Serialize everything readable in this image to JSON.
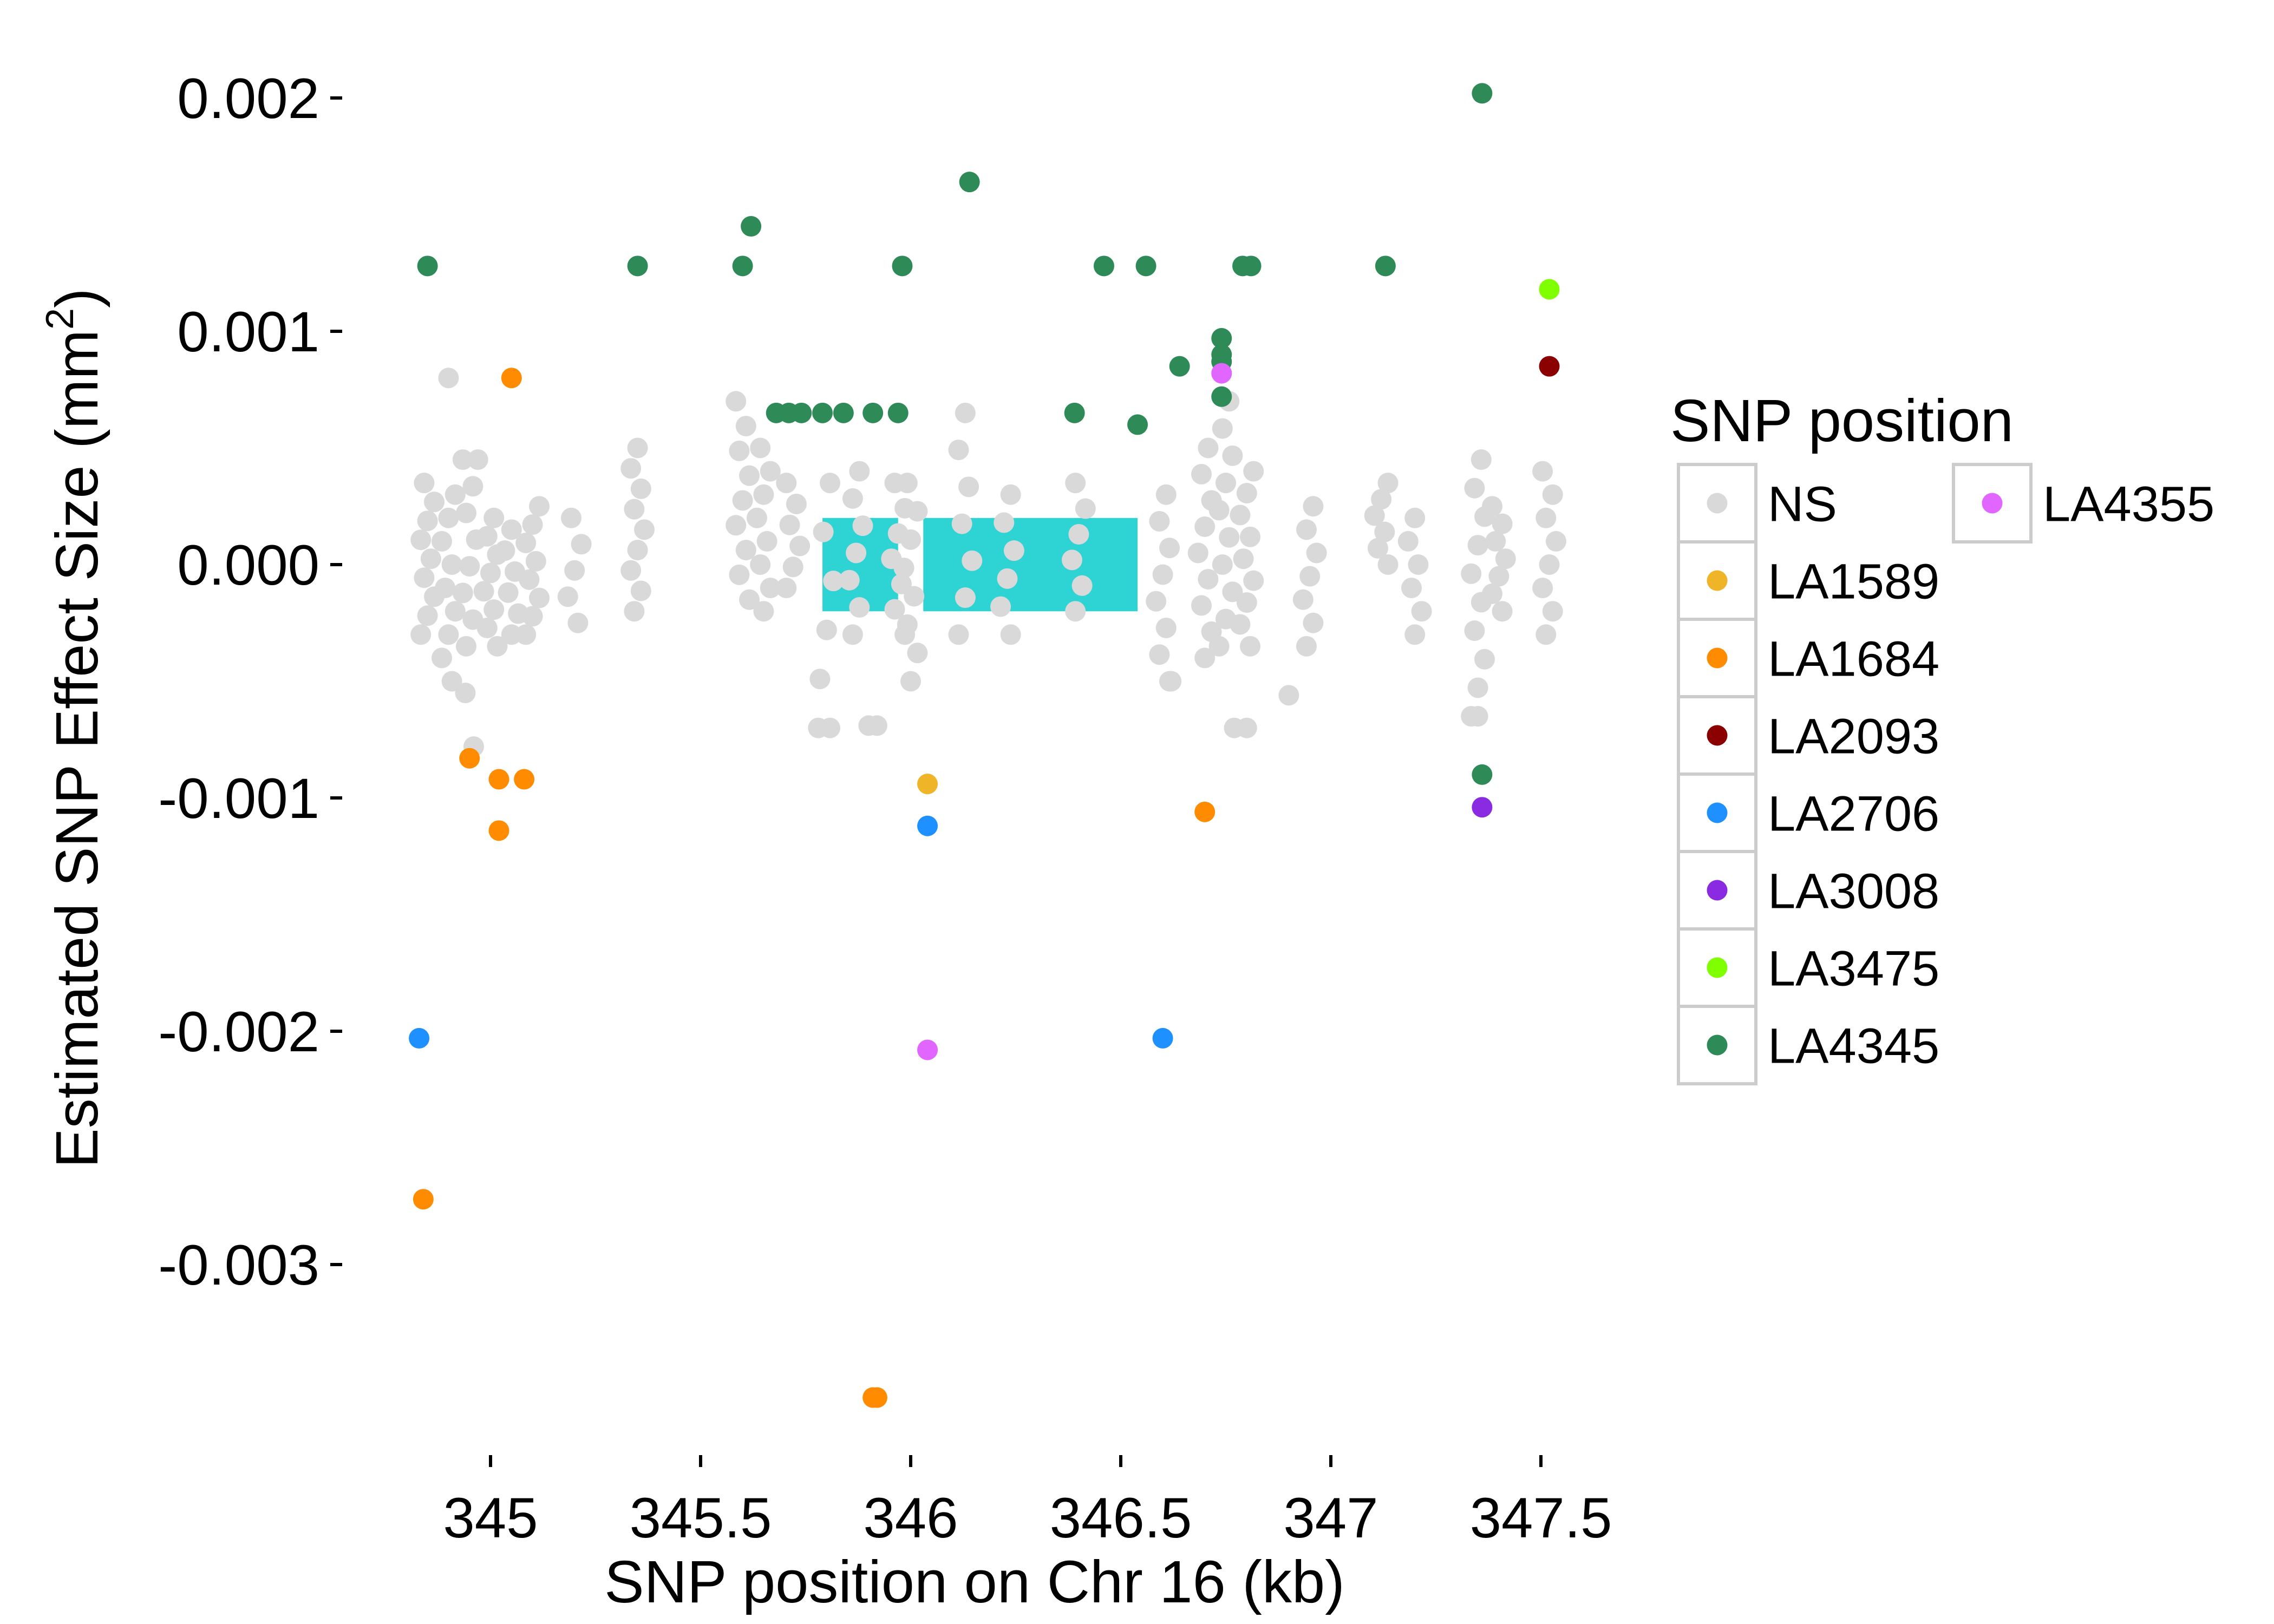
{
  "chart_data": {
    "type": "scatter",
    "xlabel": "SNP position on Chr 16 (kb)",
    "ylabel": "Estimated SNP Effect Size (mm",
    "ylabel_sup": "2",
    "ylabel_close": ")",
    "xlim": [
      344.7,
      347.85
    ],
    "ylim": [
      -3.8,
      2.3
    ],
    "y_scale_note": "values x 0.001",
    "x_ticks": [
      {
        "value": 345,
        "label": "345"
      },
      {
        "value": 345.5,
        "label": "345.5"
      },
      {
        "value": 346,
        "label": "346"
      },
      {
        "value": 346.5,
        "label": "346.5"
      },
      {
        "value": 347,
        "label": "347"
      },
      {
        "value": 347.5,
        "label": "347.5"
      }
    ],
    "y_ticks": [
      {
        "value": 2,
        "label": "0.002"
      },
      {
        "value": 1,
        "label": "0.001"
      },
      {
        "value": 0,
        "label": "0.000"
      },
      {
        "value": -1,
        "label": "-0.001"
      },
      {
        "value": -2,
        "label": "-0.002"
      },
      {
        "value": -3,
        "label": "-0.003"
      }
    ],
    "grid": false,
    "legend": {
      "title": "SNP position",
      "placement": "right",
      "entries": [
        {
          "name": "NS",
          "color": "#d9d9d9"
        },
        {
          "name": "LA1589",
          "color": "#f0b429"
        },
        {
          "name": "LA1684",
          "color": "#ff8c00"
        },
        {
          "name": "LA2093",
          "color": "#8b0000"
        },
        {
          "name": "LA2706",
          "color": "#1e90ff"
        },
        {
          "name": "LA3008",
          "color": "#8a2be2"
        },
        {
          "name": "LA3475",
          "color": "#7fff00"
        },
        {
          "name": "LA4345",
          "color": "#2e8b57"
        },
        {
          "name": "LA4355",
          "color": "#e066ff"
        }
      ]
    },
    "gene_blocks": [
      {
        "x0": 345.79,
        "x1": 345.97,
        "y0": -0.2,
        "y1": 0.2,
        "color": "#2ed3d3"
      },
      {
        "x0": 346.03,
        "x1": 346.54,
        "y0": -0.2,
        "y1": 0.2,
        "color": "#2ed3d3"
      }
    ],
    "series": [
      {
        "name": "NS",
        "color": "#d9d9d9",
        "clusters": [
          {
            "x": 344.85,
            "ymin": -0.3,
            "ymax": 0.35,
            "n": 9
          },
          {
            "x": 344.9,
            "ymin": -0.5,
            "ymax": 0.3,
            "n": 9
          },
          {
            "x": 344.95,
            "ymin": -0.35,
            "ymax": 0.45,
            "n": 8
          },
          {
            "x": 345.0,
            "ymin": -0.35,
            "ymax": 0.2,
            "n": 8
          },
          {
            "x": 345.05,
            "ymin": -0.3,
            "ymax": 0.15,
            "n": 6
          },
          {
            "x": 345.1,
            "ymin": -0.3,
            "ymax": 0.25,
            "n": 8
          },
          {
            "x": 345.2,
            "ymin": -0.25,
            "ymax": 0.2,
            "n": 5
          },
          {
            "x": 345.35,
            "ymin": -0.2,
            "ymax": 0.5,
            "n": 9
          },
          {
            "x": 345.6,
            "ymin": -0.15,
            "ymax": 0.7,
            "n": 9
          },
          {
            "x": 345.65,
            "ymin": -0.2,
            "ymax": 0.5,
            "n": 8
          },
          {
            "x": 345.72,
            "ymin": -0.1,
            "ymax": 0.35,
            "n": 6
          },
          {
            "x": 345.8,
            "ymin": -0.7,
            "ymax": 0.35,
            "n": 6
          },
          {
            "x": 345.87,
            "ymin": -0.3,
            "ymax": 0.4,
            "n": 7
          },
          {
            "x": 345.97,
            "ymin": -0.3,
            "ymax": 0.35,
            "n": 7
          },
          {
            "x": 346.0,
            "ymin": -0.5,
            "ymax": 0.35,
            "n": 8
          },
          {
            "x": 346.13,
            "ymin": -0.3,
            "ymax": 0.65,
            "n": 7
          },
          {
            "x": 346.23,
            "ymin": -0.3,
            "ymax": 0.3,
            "n": 6
          },
          {
            "x": 346.4,
            "ymin": -0.2,
            "ymax": 0.35,
            "n": 6
          },
          {
            "x": 346.6,
            "ymin": -0.5,
            "ymax": 0.3,
            "n": 8
          },
          {
            "x": 346.7,
            "ymin": -0.4,
            "ymax": 0.5,
            "n": 9
          },
          {
            "x": 346.75,
            "ymin": -0.35,
            "ymax": 0.7,
            "n": 10
          },
          {
            "x": 346.8,
            "ymin": -0.35,
            "ymax": 0.4,
            "n": 9
          },
          {
            "x": 346.95,
            "ymin": -0.35,
            "ymax": 0.25,
            "n": 7
          },
          {
            "x": 347.12,
            "ymin": 0.0,
            "ymax": 0.35,
            "n": 6
          },
          {
            "x": 347.2,
            "ymin": -0.3,
            "ymax": 0.2,
            "n": 6
          },
          {
            "x": 347.35,
            "ymin": -0.65,
            "ymax": 0.45,
            "n": 10
          },
          {
            "x": 347.4,
            "ymin": -0.2,
            "ymax": 0.25,
            "n": 7
          },
          {
            "x": 347.52,
            "ymin": -0.3,
            "ymax": 0.4,
            "n": 8
          }
        ],
        "points": [
          [
            344.9,
            0.8
          ],
          [
            344.97,
            0.45
          ],
          [
            344.96,
            -0.78
          ],
          [
            344.94,
            -0.55
          ],
          [
            345.78,
            -0.7
          ],
          [
            345.92,
            -0.69
          ],
          [
            345.9,
            -0.69
          ],
          [
            346.77,
            -0.7
          ],
          [
            346.8,
            -0.7
          ],
          [
            346.9,
            -0.56
          ],
          [
            346.62,
            -0.5
          ],
          [
            347.35,
            -0.65
          ]
        ]
      },
      {
        "name": "LA1589",
        "color": "#f0b429",
        "points": [
          [
            346.04,
            -0.94
          ]
        ]
      },
      {
        "name": "LA1684",
        "color": "#ff8c00",
        "points": [
          [
            345.05,
            0.8
          ],
          [
            344.95,
            -0.83
          ],
          [
            345.02,
            -0.92
          ],
          [
            345.08,
            -0.92
          ],
          [
            345.02,
            -1.14
          ],
          [
            344.84,
            -2.72
          ],
          [
            345.91,
            -3.57
          ],
          [
            345.92,
            -3.57
          ],
          [
            346.7,
            -1.06
          ]
        ]
      },
      {
        "name": "LA2093",
        "color": "#8b0000",
        "points": [
          [
            347.52,
            0.85
          ]
        ]
      },
      {
        "name": "LA2706",
        "color": "#1e90ff",
        "points": [
          [
            344.83,
            -2.03
          ],
          [
            346.04,
            -1.12
          ],
          [
            346.6,
            -2.03
          ]
        ]
      },
      {
        "name": "LA3008",
        "color": "#8a2be2",
        "points": [
          [
            347.36,
            -1.04
          ]
        ]
      },
      {
        "name": "LA3475",
        "color": "#7fff00",
        "points": [
          [
            347.52,
            1.18
          ]
        ]
      },
      {
        "name": "LA4345",
        "color": "#2e8b57",
        "points": [
          [
            344.85,
            1.28
          ],
          [
            345.35,
            1.28
          ],
          [
            345.6,
            1.28
          ],
          [
            345.62,
            1.45
          ],
          [
            345.98,
            1.28
          ],
          [
            346.14,
            1.64
          ],
          [
            346.46,
            1.28
          ],
          [
            346.56,
            1.28
          ],
          [
            346.79,
            1.28
          ],
          [
            346.81,
            1.28
          ],
          [
            347.13,
            1.28
          ],
          [
            347.36,
            2.02
          ],
          [
            345.68,
            0.65
          ],
          [
            345.71,
            0.65
          ],
          [
            345.74,
            0.65
          ],
          [
            345.79,
            0.65
          ],
          [
            345.84,
            0.65
          ],
          [
            345.91,
            0.65
          ],
          [
            345.97,
            0.65
          ],
          [
            346.39,
            0.65
          ],
          [
            346.54,
            0.6
          ],
          [
            346.64,
            0.85
          ],
          [
            346.74,
            0.97
          ],
          [
            346.74,
            0.9
          ],
          [
            346.74,
            0.87
          ],
          [
            346.74,
            0.72
          ],
          [
            347.36,
            -0.9
          ]
        ]
      },
      {
        "name": "LA4355",
        "color": "#e066ff",
        "points": [
          [
            346.74,
            0.82
          ],
          [
            346.04,
            -2.08
          ]
        ]
      }
    ]
  }
}
